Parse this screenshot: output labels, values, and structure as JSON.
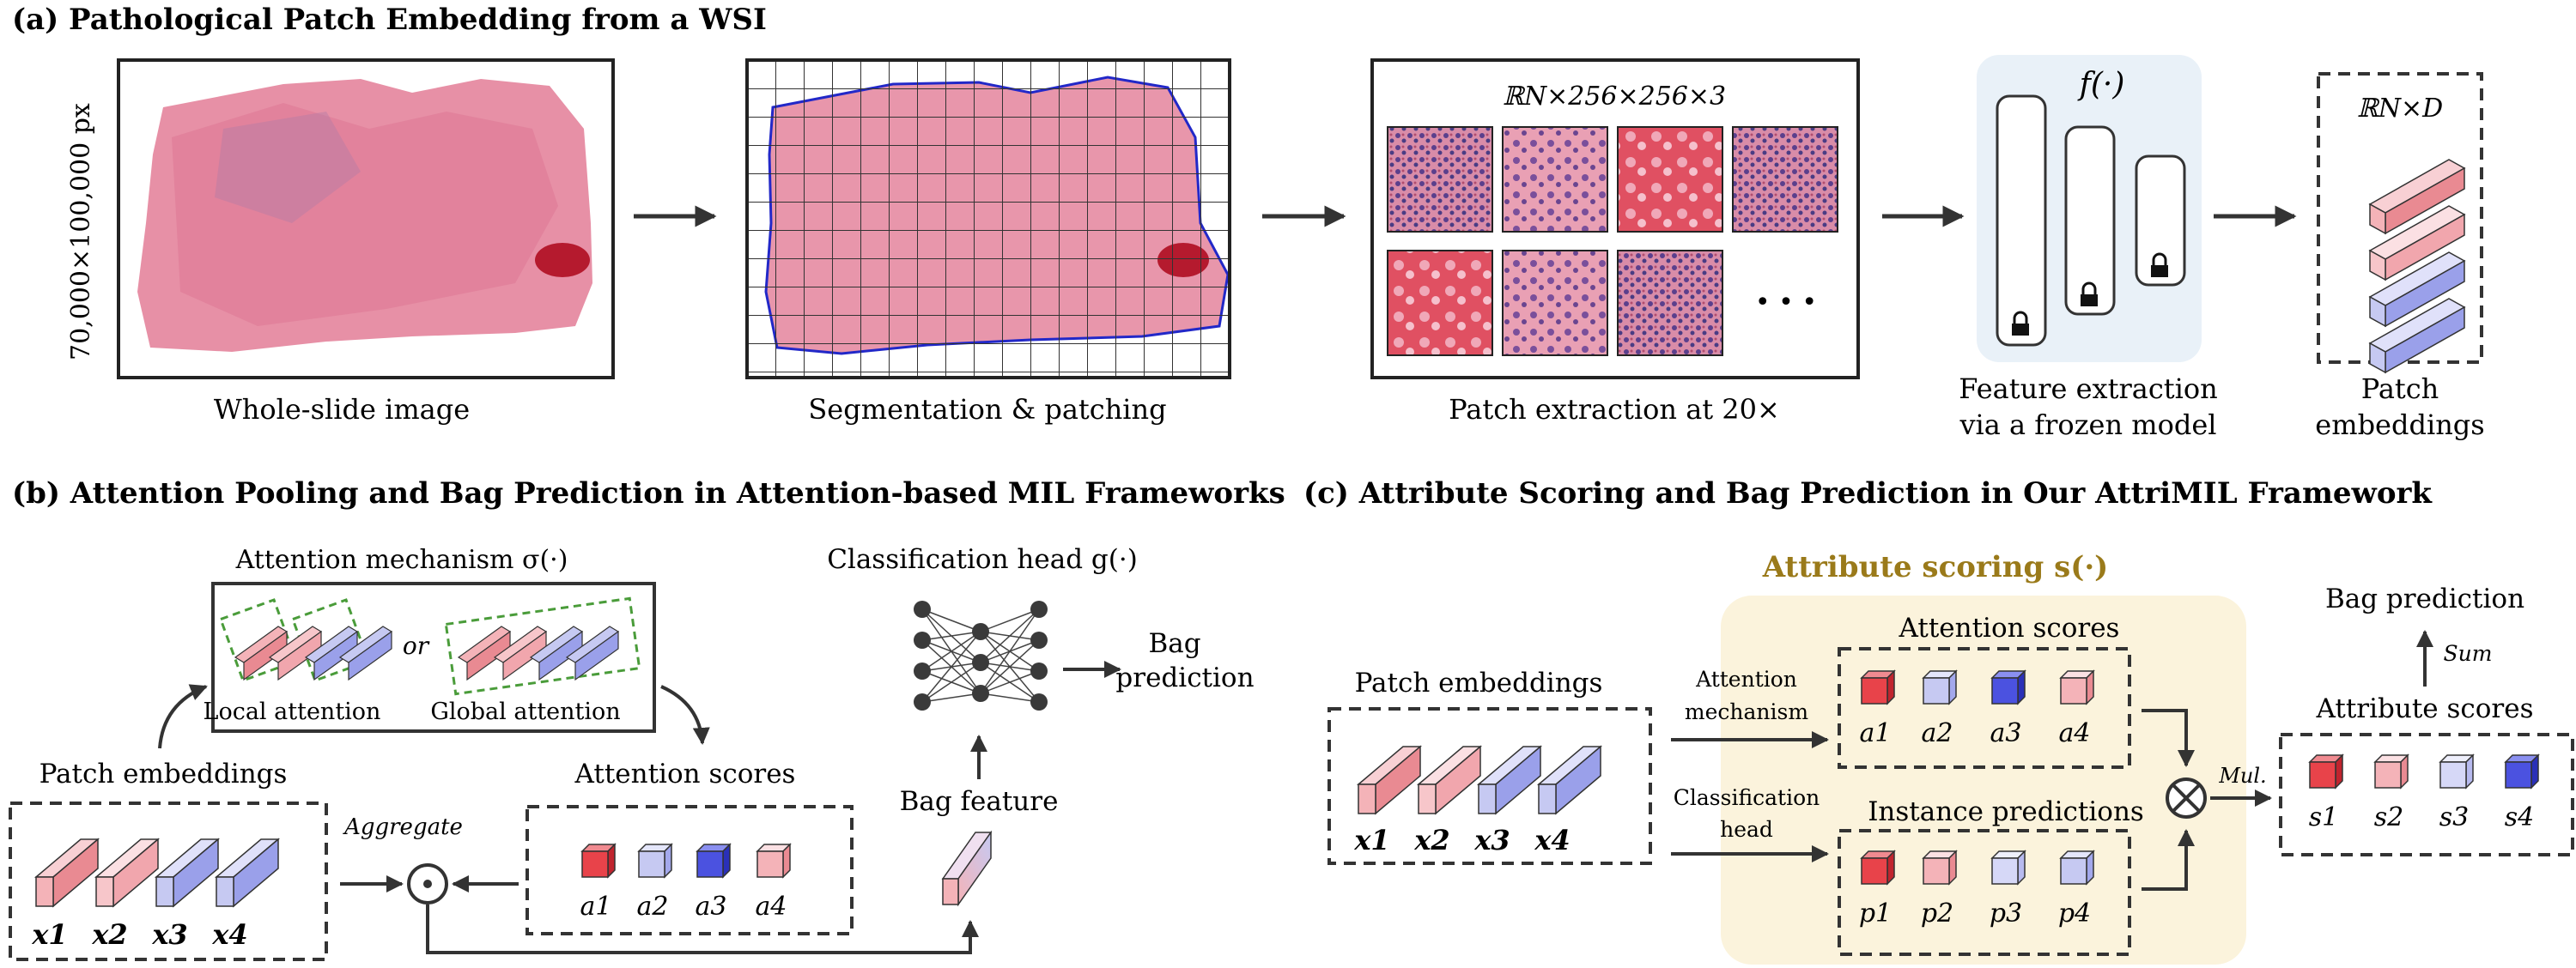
{
  "panel_a": {
    "title": "(a) Pathological Patch Embedding from a WSI",
    "wsi_size_label": "70,000×100,000 px",
    "wsi_caption": "Whole-slide image",
    "seg_caption": "Segmentation & patching",
    "patch_space": "ℝN×256×256×3",
    "patch_caption": "Patch extraction at 20×",
    "ellipsis": "• • •",
    "model_fn": "f(·)",
    "feature_caption_1": "Feature extraction",
    "feature_caption_2": "via a frozen model",
    "embed_space": "ℝN×D",
    "embed_caption_1": "Patch",
    "embed_caption_2": "embeddings"
  },
  "panel_b": {
    "title": "(b) Attention Pooling and Bag Prediction in Attention-based MIL Frameworks",
    "attn_mech": "Attention mechanism σ(·)",
    "or": "or",
    "local": "Local attention",
    "global": "Global attention",
    "cls_head": "Classification head g(·)",
    "bag_pred_1": "Bag",
    "bag_pred_2": "prediction",
    "patch_emb": "Patch embeddings",
    "x_labels": [
      "x1",
      "x2",
      "x3",
      "x4"
    ],
    "aggregate": "Aggregate",
    "attn_scores": "Attention scores",
    "a_labels": [
      "a1",
      "a2",
      "a3",
      "a4"
    ],
    "bag_feature": "Bag feature"
  },
  "panel_c": {
    "title": "(c) Attribute Scoring and Bag Prediction in Our AttriMIL Framework",
    "attr_scoring": "Attribute scoring s(·)",
    "patch_emb": "Patch embeddings",
    "x_labels": [
      "x1",
      "x2",
      "x3",
      "x4"
    ],
    "attn_mech_1": "Attention",
    "attn_mech_2": "mechanism",
    "cls_head_1": "Classification",
    "cls_head_2": "head",
    "attn_scores": "Attention scores",
    "a_labels": [
      "a1",
      "a2",
      "a3",
      "a4"
    ],
    "inst_preds": "Instance predictions",
    "p_labels": [
      "p1",
      "p2",
      "p3",
      "p4"
    ],
    "mul": "Mul.",
    "bag_pred": "Bag prediction",
    "sum": "Sum",
    "attr_scores": "Attribute scores",
    "s_labels": [
      "s1",
      "s2",
      "s3",
      "s4"
    ]
  },
  "colors": {
    "red_strong": "#e8434a",
    "red_light": "#f4b3b8",
    "blue_light": "#c6c9f2",
    "blue_strong": "#4b52e0",
    "tissue": "#e4849c",
    "blue_panel": "#e9f1f8",
    "yellow_panel": "#fbf3dc",
    "gold_text": "#9a7a1a"
  }
}
